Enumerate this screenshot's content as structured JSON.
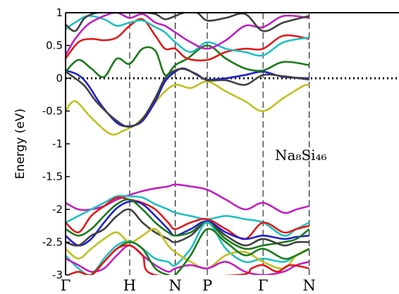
{
  "chart_data": {
    "type": "line",
    "ylabel": "Energy (eV)",
    "ylim": [
      -3,
      1
    ],
    "yticks": [
      1,
      0.5,
      0,
      -0.5,
      -1,
      -1.5,
      -2,
      -2.5,
      -3
    ],
    "ytick_labels": [
      "1",
      "0.5",
      "0",
      "-0.5",
      "-1",
      "-1.5",
      "-2",
      "-2.5",
      "-3"
    ],
    "xlim": [
      0,
      5.2
    ],
    "kpoints": [
      {
        "label": "Γ",
        "x": 0.0
      },
      {
        "label": "H",
        "x": 1.0
      },
      {
        "label": "N",
        "x": 1.71
      },
      {
        "label": "P",
        "x": 2.21
      },
      {
        "label": "Γ",
        "x": 3.08
      },
      {
        "label": "N",
        "x": 3.8
      }
    ],
    "fermi_level": 0,
    "annotation": {
      "text": "Na₈Si₄₆"
    },
    "series": [
      {
        "color": "#c0c020",
        "x": [
          0,
          0.15,
          0.4,
          0.7,
          0.9,
          1.1,
          1.3,
          1.5,
          1.71,
          1.95,
          2.21,
          2.5,
          2.8,
          3.08,
          3.4,
          3.7,
          3.8
        ],
        "y": [
          -0.5,
          -0.35,
          -0.6,
          -0.85,
          -0.8,
          -0.7,
          -0.5,
          -0.25,
          -0.1,
          -0.15,
          -0.05,
          -0.2,
          -0.35,
          -0.5,
          -0.3,
          -0.12,
          -0.1
        ]
      },
      {
        "color": "#2020d0",
        "x": [
          0,
          0.2,
          0.35,
          0.55,
          0.8,
          1.0,
          1.2,
          1.4,
          1.55,
          1.71,
          1.85,
          2.05,
          2.21,
          2.5,
          2.8,
          3.08,
          3.4,
          3.8
        ],
        "y": [
          0.12,
          0.05,
          -0.1,
          -0.4,
          -0.68,
          -0.73,
          -0.65,
          -0.35,
          -0.05,
          0.1,
          0.15,
          0.05,
          -0.02,
          0.0,
          0.05,
          0.1,
          0.02,
          0.0
        ]
      },
      {
        "color": "#404040",
        "x": [
          0,
          0.15,
          0.3,
          0.5,
          0.8,
          1.0,
          1.2,
          1.4,
          1.55,
          1.71,
          1.85,
          2.05,
          2.21,
          2.5,
          2.8,
          3.08,
          3.4,
          3.8
        ],
        "y": [
          0.1,
          0.0,
          -0.12,
          -0.38,
          -0.65,
          -0.74,
          -0.62,
          -0.3,
          0.0,
          0.12,
          0.14,
          0.06,
          -0.03,
          -0.03,
          -0.1,
          0.05,
          0.03,
          -0.02
        ]
      },
      {
        "color": "#1a7a1a",
        "x": [
          0,
          0.2,
          0.4,
          0.6,
          0.8,
          1.0,
          1.2,
          1.4,
          1.55,
          1.71,
          1.9,
          2.21,
          2.5,
          2.8,
          3.08,
          3.4,
          3.8
        ],
        "y": [
          0.1,
          0.28,
          0.15,
          0.02,
          0.3,
          0.22,
          0.45,
          0.42,
          0.05,
          0.2,
          0.3,
          0.5,
          0.3,
          0.15,
          0.12,
          0.25,
          0.2
        ]
      },
      {
        "color": "#e01a1a",
        "x": [
          0,
          0.2,
          0.4,
          0.6,
          0.8,
          1.0,
          1.2,
          1.4,
          1.55,
          1.71,
          1.9,
          2.21,
          2.5,
          2.8,
          3.08,
          3.4,
          3.8
        ],
        "y": [
          0.3,
          0.55,
          0.6,
          0.58,
          0.62,
          0.8,
          0.9,
          0.65,
          0.45,
          0.45,
          0.3,
          0.28,
          0.4,
          0.45,
          0.45,
          0.65,
          0.6
        ]
      },
      {
        "color": "#20c0c0",
        "x": [
          0,
          0.15,
          0.35,
          0.6,
          0.8,
          1.0,
          1.2,
          1.4,
          1.55,
          1.71,
          1.95,
          2.21,
          2.5,
          2.8,
          3.08,
          3.4,
          3.8
        ],
        "y": [
          0.75,
          0.85,
          0.95,
          0.9,
          0.8,
          0.85,
          0.88,
          0.78,
          0.7,
          0.55,
          0.4,
          0.55,
          0.45,
          0.4,
          0.35,
          0.55,
          0.62
        ]
      },
      {
        "color": "#c020c0",
        "x": [
          0,
          0.15,
          0.35,
          0.6,
          0.8,
          1.0,
          1.2,
          1.4,
          1.55,
          1.71,
          1.95,
          2.21,
          2.5,
          2.8,
          3.08,
          3.4,
          3.8
        ],
        "y": [
          0.35,
          0.6,
          0.82,
          0.95,
          1.0,
          0.92,
          0.98,
          0.85,
          0.8,
          0.7,
          0.55,
          0.45,
          0.58,
          0.8,
          0.78,
          0.95,
          0.92
        ]
      },
      {
        "color": "#404040",
        "x": [
          0,
          0.15,
          0.3,
          0.5,
          0.8,
          1.0,
          1.2,
          1.4,
          1.55,
          1.71,
          1.85,
          2.05,
          2.21,
          2.5,
          2.8,
          3.08,
          3.4,
          3.8
        ],
        "y": [
          0.82,
          0.72,
          0.92,
          1.0,
          1.0,
          1.0,
          1.0,
          0.98,
          0.9,
          0.95,
          1.0,
          1.0,
          0.88,
          0.92,
          0.98,
          0.72,
          0.85,
          0.95
        ]
      },
      {
        "color": "#c020c0",
        "x": [
          0,
          0.2,
          0.4,
          0.6,
          0.8,
          1.0,
          1.2,
          1.4,
          1.6,
          1.71,
          1.95,
          2.21,
          2.5,
          2.8,
          3.08,
          3.4,
          3.6,
          3.8
        ],
        "y": [
          -1.9,
          -2.0,
          -2.0,
          -1.95,
          -1.85,
          -1.78,
          -1.72,
          -1.68,
          -1.65,
          -1.62,
          -1.65,
          -1.7,
          -1.85,
          -2.0,
          -1.9,
          -2.05,
          -2.0,
          -1.95
        ]
      },
      {
        "color": "#20c0c0",
        "x": [
          0,
          0.2,
          0.4,
          0.6,
          0.8,
          1.0,
          1.2,
          1.4,
          1.6,
          1.71,
          1.95,
          2.21,
          2.5,
          2.8,
          3.08,
          3.4,
          3.6,
          3.8
        ],
        "y": [
          -2.2,
          -2.1,
          -2.0,
          -1.9,
          -1.8,
          -1.8,
          -1.82,
          -1.92,
          -2.0,
          -2.05,
          -2.1,
          -2.15,
          -2.1,
          -2.15,
          -2.2,
          -2.4,
          -2.3,
          -2.2
        ]
      },
      {
        "color": "#e01a1a",
        "x": [
          0,
          0.2,
          0.4,
          0.6,
          0.8,
          1.0,
          1.2,
          1.4,
          1.6,
          1.71,
          1.95,
          2.21,
          2.5,
          2.8,
          3.08,
          3.4,
          3.6,
          3.8
        ],
        "y": [
          -2.2,
          -2.35,
          -2.1,
          -1.95,
          -1.82,
          -1.85,
          -1.9,
          -2.0,
          -2.2,
          -2.3,
          -2.2,
          -2.15,
          -2.3,
          -2.45,
          -2.2,
          -2.35,
          -2.3,
          -2.25
        ]
      },
      {
        "color": "#2020d0",
        "x": [
          0,
          0.2,
          0.4,
          0.6,
          0.8,
          1.0,
          1.2,
          1.4,
          1.6,
          1.71,
          1.95,
          2.21,
          2.5,
          2.8,
          3.08,
          3.4,
          3.6,
          3.8
        ],
        "y": [
          -2.4,
          -2.55,
          -2.45,
          -2.2,
          -1.98,
          -1.88,
          -1.92,
          -2.1,
          -2.3,
          -2.4,
          -2.3,
          -2.18,
          -2.35,
          -2.45,
          -2.4,
          -2.45,
          -2.42,
          -2.4
        ]
      },
      {
        "color": "#1a7a1a",
        "x": [
          0,
          0.2,
          0.4,
          0.6,
          0.8,
          1.0,
          1.2,
          1.4,
          1.6,
          1.71,
          1.95,
          2.21,
          2.5,
          2.8,
          3.08,
          3.4,
          3.6,
          3.8
        ],
        "y": [
          -2.3,
          -2.4,
          -2.3,
          -2.1,
          -1.92,
          -1.85,
          -2.0,
          -2.2,
          -2.35,
          -2.4,
          -2.35,
          -2.2,
          -2.45,
          -2.6,
          -2.55,
          -2.5,
          -2.45,
          -2.3
        ]
      },
      {
        "color": "#404040",
        "x": [
          0,
          0.2,
          0.4,
          0.6,
          0.8,
          1.0,
          1.2,
          1.4,
          1.6,
          1.71,
          1.95,
          2.21,
          2.5,
          2.8,
          3.08,
          3.4,
          3.6,
          3.8
        ],
        "y": [
          -2.5,
          -2.55,
          -2.4,
          -2.3,
          -2.1,
          -2.0,
          -2.2,
          -2.35,
          -2.45,
          -2.5,
          -2.4,
          -2.2,
          -2.4,
          -2.55,
          -2.45,
          -2.55,
          -2.5,
          -2.5
        ]
      },
      {
        "color": "#20c0c0",
        "x": [
          0,
          0.2,
          0.4,
          0.6,
          0.8,
          1.0,
          1.2,
          1.4,
          1.6,
          1.71,
          1.95,
          2.21,
          2.5,
          2.8,
          3.08,
          3.4,
          3.6,
          3.8
        ],
        "y": [
          -2.7,
          -2.9,
          -3.0,
          -2.75,
          -2.55,
          -2.48,
          -2.6,
          -2.75,
          -2.8,
          -2.85,
          -2.6,
          -2.2,
          -2.6,
          -2.8,
          -2.75,
          -2.8,
          -2.7,
          -2.6
        ]
      },
      {
        "color": "#c0c020",
        "x": [
          0,
          0.2,
          0.4,
          0.6,
          0.8,
          1.0,
          1.2,
          1.4,
          1.6,
          1.71,
          1.95,
          2.21,
          2.5,
          2.8,
          3.08,
          3.4,
          3.6,
          3.8
        ],
        "y": [
          -2.6,
          -2.75,
          -2.6,
          -2.45,
          -2.35,
          -2.5,
          -2.4,
          -2.3,
          -2.55,
          -2.65,
          -2.8,
          -2.9,
          -2.7,
          -2.65,
          -2.8,
          -2.9,
          -2.7,
          -2.6
        ]
      },
      {
        "color": "#c020c0",
        "x": [
          0,
          0.2,
          0.4,
          0.6,
          0.8,
          1.0,
          1.2,
          1.4,
          1.6,
          1.71,
          1.95,
          2.21,
          2.5,
          2.8,
          3.08,
          3.4,
          3.6,
          3.8
        ],
        "y": [
          -2.75,
          -2.85,
          -2.95,
          -2.9,
          -2.7,
          -2.55,
          -2.7,
          -2.85,
          -2.95,
          -2.9,
          -2.85,
          -2.9,
          -2.8,
          -2.95,
          -3.0,
          -2.95,
          -2.85,
          -2.8
        ]
      },
      {
        "color": "#1a7a1a",
        "x": [
          0.4,
          0.6,
          0.8,
          1.0,
          1.2,
          1.4,
          1.6,
          1.71,
          1.95,
          2.21,
          2.5,
          2.8,
          3.08,
          3.4,
          3.6,
          3.8
        ],
        "y": [
          -3.0,
          -2.8,
          -2.6,
          -2.5,
          -2.6,
          -2.9,
          -3.0,
          -3.0,
          -2.7,
          -2.3,
          -2.5,
          -2.7,
          -2.6,
          -2.75,
          -2.7,
          -2.6
        ]
      },
      {
        "color": "#e01a1a",
        "x": [
          0.05,
          0.2,
          0.4,
          0.6,
          0.8,
          1.0,
          1.2,
          1.4,
          2.7,
          2.9,
          3.08,
          3.3,
          3.5,
          3.8
        ],
        "y": [
          -3.0,
          -2.95,
          -3.0,
          -2.8,
          -2.6,
          -2.55,
          -2.7,
          -3.0,
          -3.0,
          -2.9,
          -2.85,
          -2.95,
          -2.85,
          -2.9
        ]
      }
    ]
  }
}
